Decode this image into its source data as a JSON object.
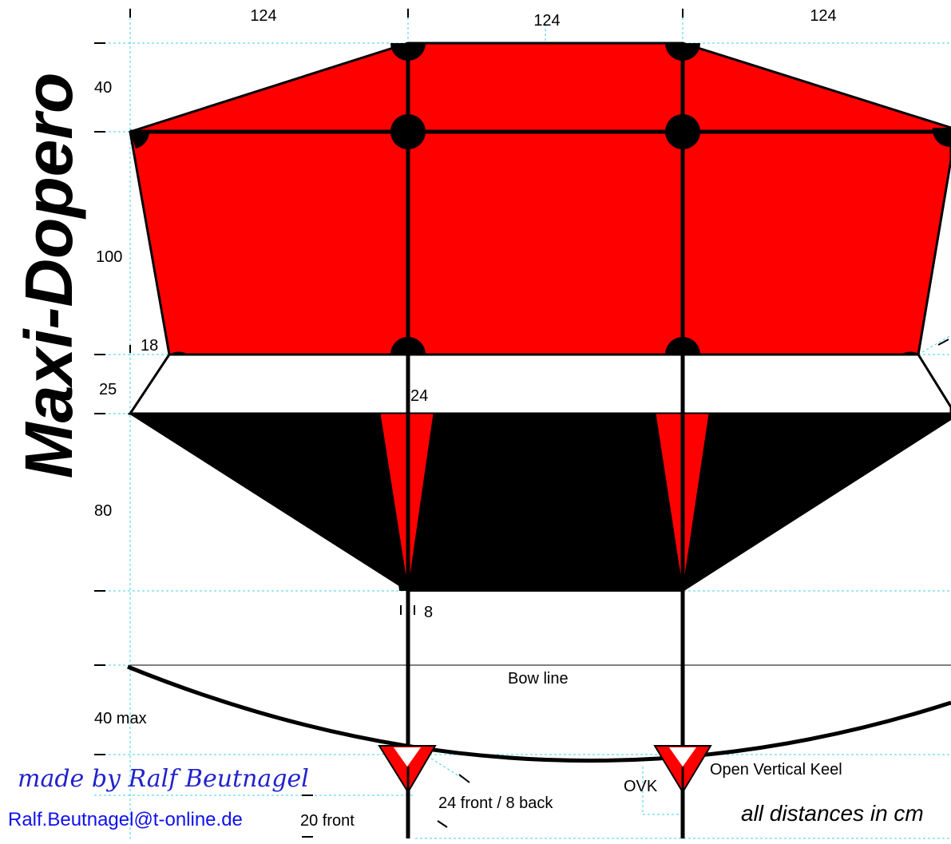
{
  "title": "Maxi-Dopero",
  "dimensions": {
    "top_widths": [
      "124",
      "124",
      "124"
    ],
    "heights": {
      "top": "40",
      "sail": "100",
      "gap": "25",
      "lower": "80",
      "bow": "40 max",
      "keel": "20 front"
    },
    "corner_offset": "18",
    "spar_top": "24",
    "spar_bottom": "8"
  },
  "labels": {
    "bow_line": "Bow line",
    "ovk_abbrev": "OVK",
    "ovk_full": "Open Vertical Keel",
    "keel_size": "24 front / 8 back",
    "units_note": "all distances in cm"
  },
  "credits": {
    "author": "made by Ralf Beutnagel",
    "email": "Ralf.Beutnagel@t-online.de"
  },
  "colors": {
    "sail": "#ff0000",
    "lower_panel": "#000000",
    "guide": "#3fd0e6",
    "signature": "#2222cc",
    "email": "#1010ee"
  }
}
